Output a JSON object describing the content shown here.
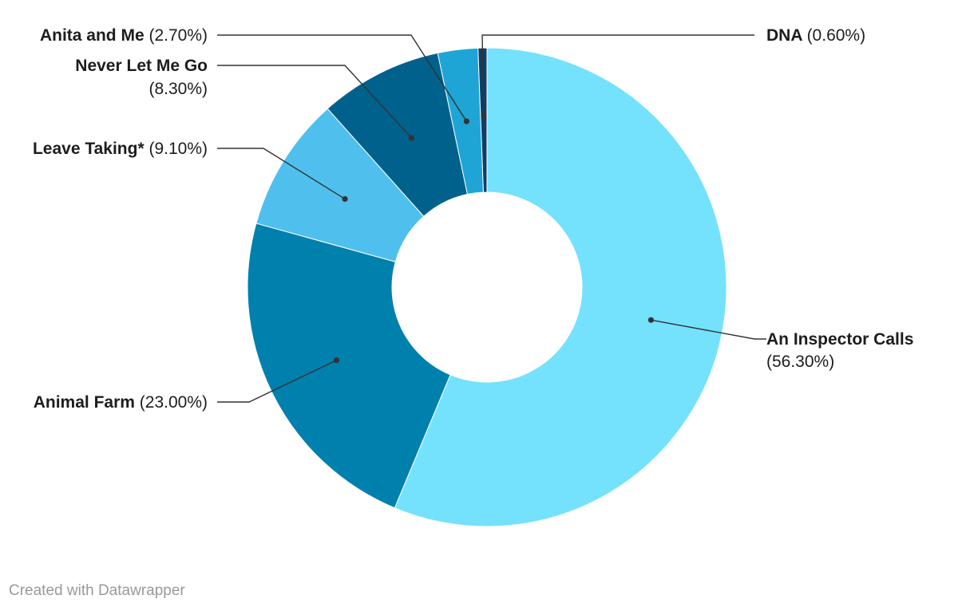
{
  "chart_data": {
    "type": "pie",
    "variant": "donut",
    "slices": [
      {
        "label": "An Inspector Calls",
        "value_label": "(56.30%)",
        "value": 56.3,
        "color": "#74e1fd"
      },
      {
        "label": "Animal Farm",
        "value_label": "(23.00%)",
        "value": 23.0,
        "color": "#0080ad"
      },
      {
        "label": "Leave Taking*",
        "value_label": "(9.10%)",
        "value": 9.1,
        "color": "#4fc0ee"
      },
      {
        "label": "Never Let Me Go",
        "value_label": "(8.30%)",
        "value": 8.3,
        "color": "#00618c"
      },
      {
        "label": "Anita and Me",
        "value_label": "(2.70%)",
        "value": 2.7,
        "color": "#1ea5d6"
      },
      {
        "label": "DNA",
        "value_label": "(0.60%)",
        "value": 0.6,
        "color": "#0d3f66"
      }
    ]
  },
  "footer": {
    "credit": "Created with Datawrapper"
  }
}
